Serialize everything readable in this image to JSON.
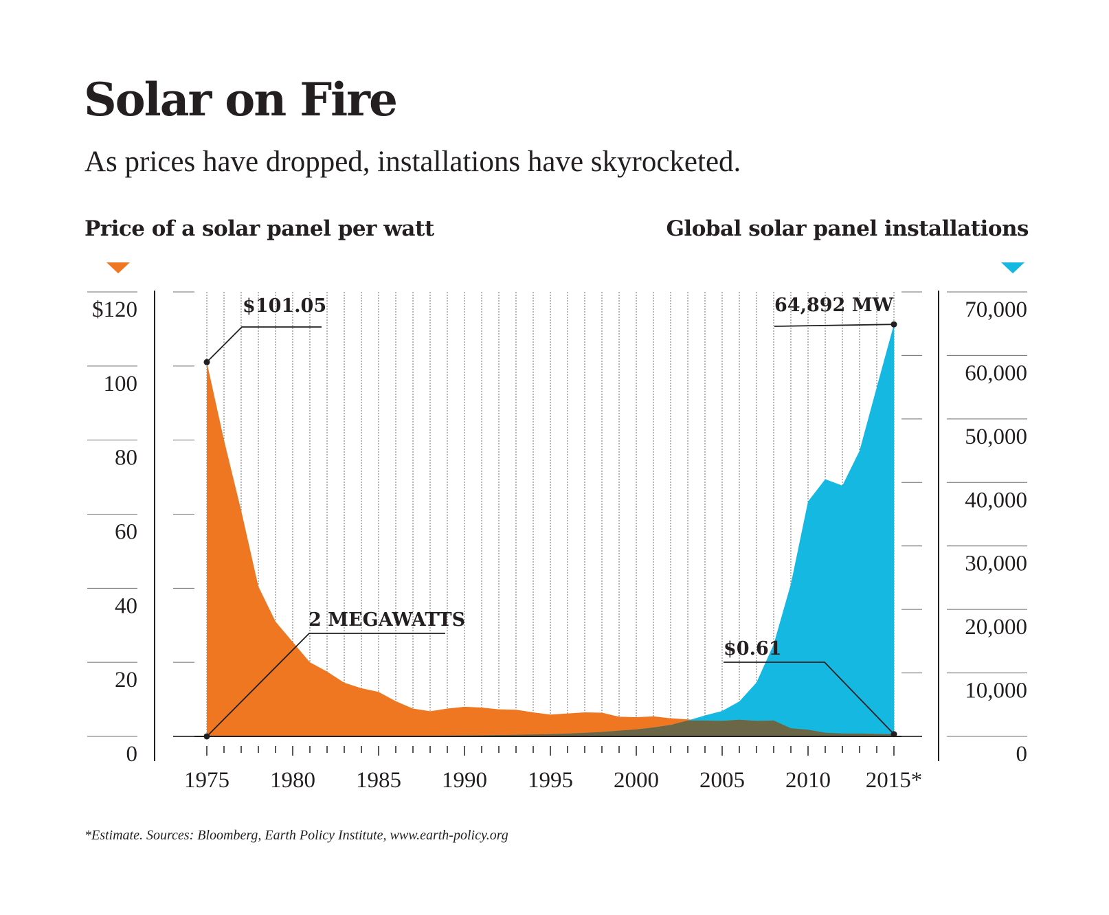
{
  "chart_data": {
    "type": "area",
    "title": "Solar on Fire",
    "subtitle": "As prices have dropped, installations have skyrocketed.",
    "left_axis_title": "Price of a solar panel per watt",
    "right_axis_title": "Global solar panel installations",
    "footnote": "*Estimate. Sources: Bloomberg, Earth Policy Institute, www.earth-policy.org",
    "x": [
      1975,
      1976,
      1977,
      1978,
      1979,
      1980,
      1981,
      1982,
      1983,
      1984,
      1985,
      1986,
      1987,
      1988,
      1989,
      1990,
      1991,
      1992,
      1993,
      1994,
      1995,
      1996,
      1997,
      1998,
      1999,
      2000,
      2001,
      2002,
      2003,
      2004,
      2005,
      2006,
      2007,
      2008,
      2009,
      2010,
      2011,
      2012,
      2013,
      2014,
      2015
    ],
    "x_tick_labels": [
      "1975",
      "1980",
      "1985",
      "1990",
      "1995",
      "2000",
      "2005",
      "2010",
      "2015*"
    ],
    "xlim": [
      1975,
      2015
    ],
    "series": [
      {
        "name": "Price of a solar panel per watt",
        "axis": "left",
        "color": "#f07722",
        "values": [
          101.05,
          80.0,
          61.0,
          40.5,
          31.0,
          25.5,
          20.0,
          17.5,
          14.5,
          13.0,
          12.0,
          9.5,
          7.5,
          6.8,
          7.5,
          8.0,
          7.8,
          7.3,
          7.2,
          6.5,
          5.9,
          6.2,
          6.5,
          6.4,
          5.3,
          5.2,
          5.4,
          4.9,
          4.6,
          4.3,
          4.2,
          4.5,
          4.2,
          4.3,
          2.2,
          1.8,
          1.0,
          0.8,
          0.8,
          0.7,
          0.61
        ]
      },
      {
        "name": "Global solar panel installations",
        "axis": "right",
        "unit": "MW",
        "color": "#14b8e0",
        "values": [
          2,
          3,
          5,
          8,
          12,
          15,
          20,
          30,
          40,
          50,
          60,
          70,
          80,
          100,
          120,
          140,
          160,
          200,
          250,
          300,
          350,
          450,
          550,
          700,
          900,
          1100,
          1400,
          1800,
          2500,
          3300,
          4000,
          5500,
          8500,
          14500,
          24000,
          37000,
          40500,
          39500,
          45000,
          55000,
          64892
        ]
      }
    ],
    "overlap_color": "#6b6645",
    "left_axis": {
      "ylim": [
        0,
        120
      ],
      "ticks": [
        0,
        20,
        40,
        60,
        80,
        100,
        120
      ],
      "tick_labels": [
        "0",
        "20",
        "40",
        "60",
        "80",
        "100",
        "$120"
      ]
    },
    "right_axis": {
      "ylim": [
        0,
        70000
      ],
      "ticks": [
        0,
        10000,
        20000,
        30000,
        40000,
        50000,
        60000,
        70000
      ],
      "tick_labels": [
        "0",
        "10,000",
        "20,000",
        "30,000",
        "40,000",
        "50,000",
        "60,000",
        "70,000"
      ]
    },
    "annotations": [
      {
        "text": "$101.05",
        "series": 0,
        "x": 1975
      },
      {
        "text": "2 MEGAWATTS",
        "series": 1,
        "x": 1975
      },
      {
        "text": "$0.61",
        "series": 0,
        "x": 2015
      },
      {
        "text": "64,892 MW",
        "series": 1,
        "x": 2015
      }
    ],
    "grid": true,
    "legend": "none"
  }
}
